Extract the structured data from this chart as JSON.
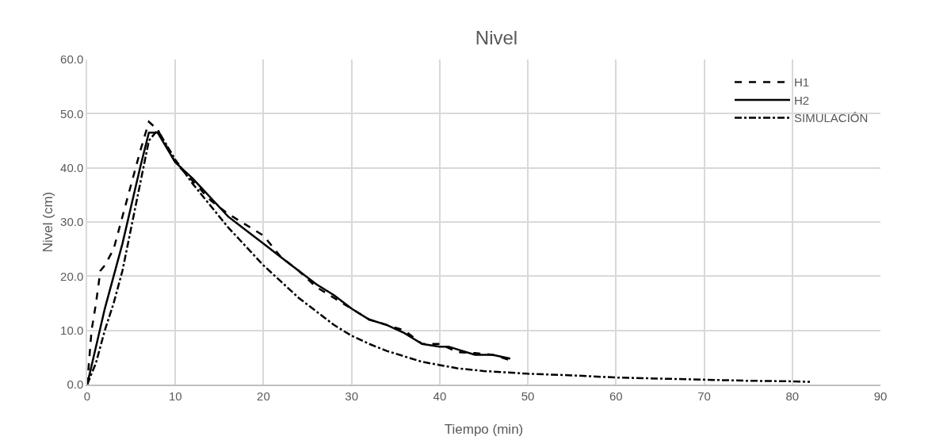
{
  "chart_data": {
    "type": "line",
    "title": "Nivel",
    "xlabel": "Tiempo (min)",
    "ylabel": "Nivel (cm)",
    "xlim": [
      0,
      90
    ],
    "xticks": [
      0,
      10,
      20,
      30,
      40,
      50,
      60,
      70,
      80,
      90
    ],
    "ylim": [
      0,
      60
    ],
    "yticks": [
      {
        "value": 0,
        "label": "0.0"
      },
      {
        "value": 10,
        "label": "10.0"
      },
      {
        "value": 20,
        "label": "20.0"
      },
      {
        "value": 30,
        "label": "30.0"
      },
      {
        "value": 40,
        "label": "40.0"
      },
      {
        "value": 50,
        "label": "50.0"
      },
      {
        "value": 60,
        "label": "60.0"
      }
    ],
    "grid": true,
    "legend": "top right",
    "marker": "none",
    "series": [
      {
        "name": "H1",
        "color": "#000000",
        "line_style": "dashed",
        "x": [
          0,
          0.5,
          1,
          1.5,
          2,
          3,
          4,
          5,
          6,
          7,
          8,
          9,
          10,
          12,
          14,
          16,
          18,
          20,
          22,
          24,
          26,
          28,
          30,
          32,
          34,
          36,
          38,
          40,
          42,
          44,
          46,
          48
        ],
        "values": [
          0,
          10,
          15,
          21,
          22,
          25,
          31,
          37,
          43,
          48.5,
          47,
          44,
          41,
          37.5,
          34,
          31.5,
          29.5,
          27.5,
          23.5,
          21,
          18,
          16,
          14,
          12,
          11,
          10,
          7.5,
          7.5,
          6,
          5.8,
          5.5,
          4.5
        ]
      },
      {
        "name": "H2",
        "color": "#000000",
        "line_style": "solid",
        "x": [
          0,
          1,
          2,
          3,
          4,
          5,
          6,
          7,
          8,
          10,
          12,
          14,
          16,
          18,
          20,
          22,
          24,
          26,
          28,
          30,
          32,
          34,
          36,
          38,
          40,
          41,
          42,
          44,
          46,
          48
        ],
        "values": [
          0,
          7,
          14,
          20,
          26,
          33,
          40,
          46.5,
          46.5,
          41,
          38,
          34.5,
          31,
          28.5,
          26,
          23.5,
          21,
          18.5,
          16.5,
          14,
          12,
          11,
          9.5,
          7.5,
          7,
          7,
          6.5,
          5.5,
          5.5,
          4.8
        ]
      },
      {
        "name": "SIMULACIÓN",
        "color": "#000000",
        "line_style": "dashdot",
        "x": [
          0,
          1,
          2,
          3,
          4,
          5,
          6,
          7,
          8,
          10,
          12,
          14,
          16,
          18,
          20,
          22,
          24,
          26,
          28,
          30,
          32,
          34,
          36,
          38,
          40,
          42,
          45,
          50,
          55,
          60,
          65,
          70,
          75,
          80,
          82
        ],
        "values": [
          0,
          4,
          10,
          15,
          21,
          29,
          37,
          45,
          47,
          41.5,
          37,
          33,
          29,
          25.5,
          22,
          19,
          16,
          13.5,
          11,
          9,
          7.5,
          6.2,
          5.2,
          4.2,
          3.6,
          3,
          2.5,
          2,
          1.7,
          1.3,
          1.1,
          0.9,
          0.7,
          0.6,
          0.5
        ]
      }
    ]
  }
}
